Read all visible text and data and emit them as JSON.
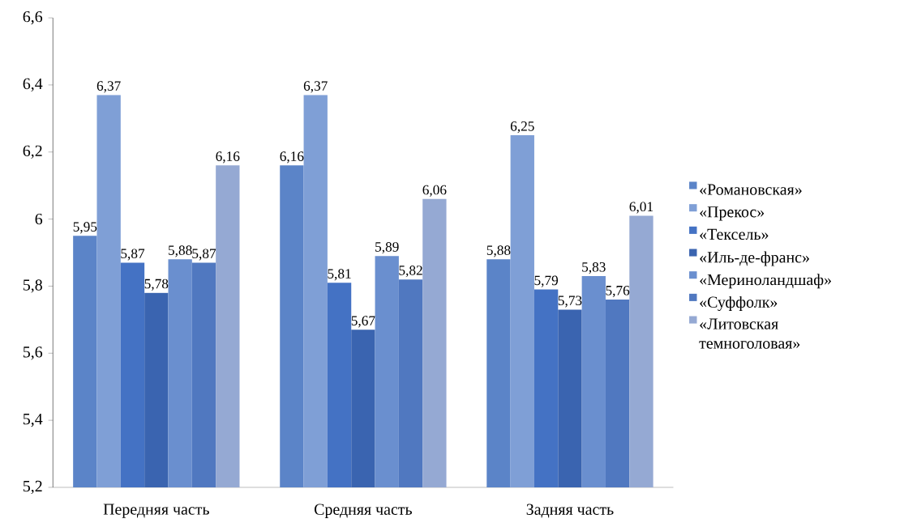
{
  "chart_data": {
    "type": "bar",
    "categories": [
      "Передняя часть",
      "Средняя часть",
      "Задняя часть"
    ],
    "series": [
      {
        "name": "«Романовская»",
        "color": "#5b84c8",
        "values": [
          5.95,
          6.16,
          5.88
        ],
        "value_labels": [
          "5,95",
          "6,16",
          "5,88"
        ]
      },
      {
        "name": "«Прекос»",
        "color": "#7f9fd6",
        "values": [
          6.37,
          6.37,
          6.25
        ],
        "value_labels": [
          "6,37",
          "6,37",
          "6,25"
        ]
      },
      {
        "name": "«Тексель»",
        "color": "#4472c4",
        "values": [
          5.87,
          5.81,
          5.79
        ],
        "value_labels": [
          "5,87",
          "5,81",
          "5,79"
        ]
      },
      {
        "name": "«Иль-де-франс»",
        "color": "#3a64b0",
        "values": [
          5.78,
          5.67,
          5.73
        ],
        "value_labels": [
          "5,78",
          "5,67",
          "5,73"
        ]
      },
      {
        "name": "«Мериноландшаф»",
        "color": "#6a8fcf",
        "values": [
          5.88,
          5.89,
          5.83
        ],
        "value_labels": [
          "5,88",
          "5,89",
          "5,83"
        ]
      },
      {
        "name": "«Суффолк»",
        "color": "#5078c0",
        "values": [
          5.87,
          5.82,
          5.76
        ],
        "value_labels": [
          "5,87",
          "5,82",
          "5,76"
        ]
      },
      {
        "name": "«Литовская темноголовая»",
        "color": "#95a9d3",
        "values": [
          6.16,
          6.06,
          6.01
        ],
        "value_labels": [
          "6,16",
          "6,06",
          "6,01"
        ]
      }
    ],
    "ylim": [
      5.2,
      6.6
    ],
    "yticks": [
      {
        "value": 5.2,
        "label": "5,2"
      },
      {
        "value": 5.4,
        "label": "5,4"
      },
      {
        "value": 5.6,
        "label": "5,6"
      },
      {
        "value": 5.8,
        "label": "5,8"
      },
      {
        "value": 6,
        "label": "6"
      },
      {
        "value": 6.2,
        "label": "6,2"
      },
      {
        "value": 6.4,
        "label": "6,4"
      },
      {
        "value": 6.6,
        "label": "6,6"
      }
    ],
    "legend": "right",
    "grid": false
  }
}
